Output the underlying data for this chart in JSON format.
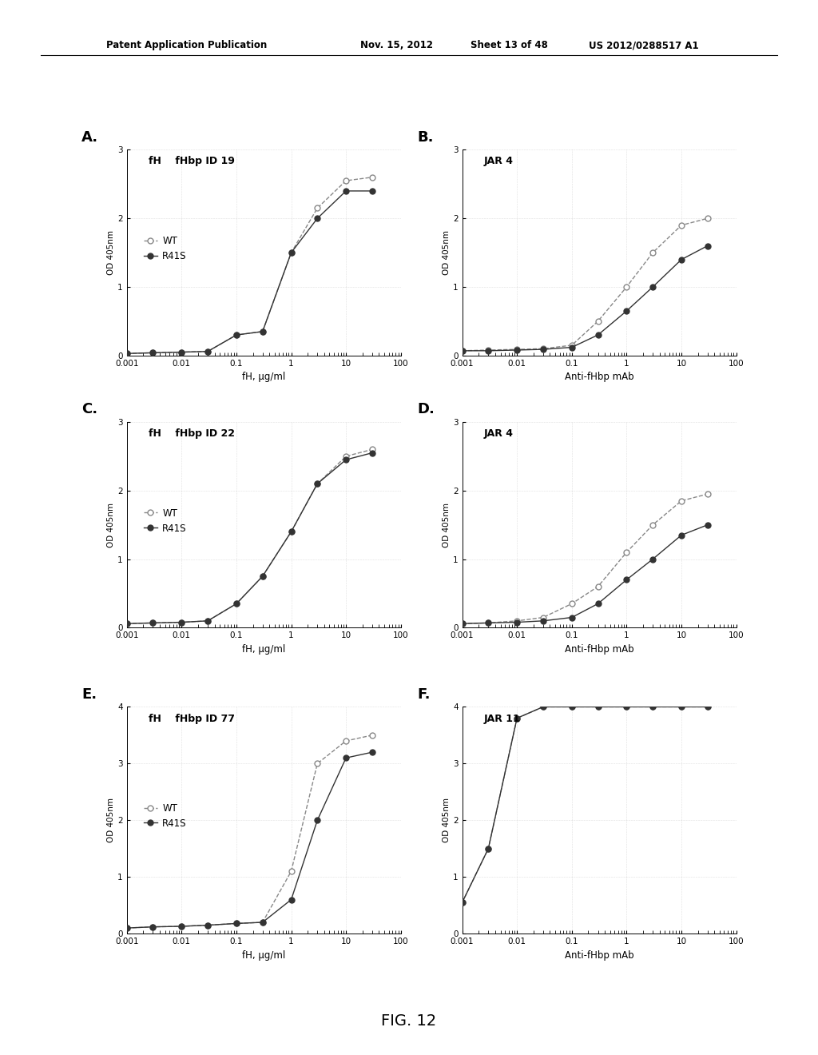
{
  "background_color": "#ffffff",
  "header_line1": "Patent Application Publication",
  "header_line2": "Nov. 15, 2012",
  "header_line3": "Sheet 13 of 48",
  "header_line4": "US 2012/0288517 A1",
  "fig_label": "FIG. 12",
  "panels": [
    {
      "label": "A.",
      "title": "fH    fHbp ID 19",
      "xlabel": "fH, µg/ml",
      "ylim": [
        0,
        3
      ],
      "yticks": [
        0,
        1,
        2,
        3
      ],
      "xlim": [
        0.001,
        100
      ],
      "xticks": [
        0.001,
        0.01,
        0.1,
        1,
        10,
        100
      ],
      "xticklabels": [
        "0.001",
        "0.01",
        "0.1",
        "1",
        "10",
        "100"
      ],
      "wt_x": [
        0.001,
        0.003,
        0.01,
        0.03,
        0.1,
        0.3,
        1,
        3,
        10,
        30
      ],
      "wt_y": [
        0.03,
        0.04,
        0.05,
        0.06,
        0.3,
        0.35,
        1.5,
        2.15,
        2.55,
        2.6
      ],
      "r41s_x": [
        0.001,
        0.003,
        0.01,
        0.03,
        0.1,
        0.3,
        1,
        3,
        10,
        30
      ],
      "r41s_y": [
        0.03,
        0.04,
        0.05,
        0.06,
        0.3,
        0.35,
        1.5,
        2.0,
        2.4,
        2.4
      ],
      "has_legend": true,
      "row": 0,
      "col": 0
    },
    {
      "label": "B.",
      "title": "JAR 4",
      "xlabel": "Anti-fHbp mAb",
      "ylim": [
        0,
        3
      ],
      "yticks": [
        0,
        1,
        2,
        3
      ],
      "xlim": [
        0.001,
        100
      ],
      "xticks": [
        0.001,
        0.01,
        0.1,
        1,
        10,
        100
      ],
      "xticklabels": [
        "0.001",
        "0.01",
        "0.1",
        "1",
        "10",
        "100"
      ],
      "wt_x": [
        0.001,
        0.003,
        0.01,
        0.03,
        0.1,
        0.3,
        1,
        3,
        10,
        30
      ],
      "wt_y": [
        0.07,
        0.08,
        0.09,
        0.1,
        0.15,
        0.5,
        1.0,
        1.5,
        1.9,
        2.0
      ],
      "r41s_x": [
        0.001,
        0.003,
        0.01,
        0.03,
        0.1,
        0.3,
        1,
        3,
        10,
        30
      ],
      "r41s_y": [
        0.07,
        0.07,
        0.08,
        0.09,
        0.12,
        0.3,
        0.65,
        1.0,
        1.4,
        1.6
      ],
      "has_legend": false,
      "row": 0,
      "col": 1
    },
    {
      "label": "C.",
      "title": "fH    fHbp ID 22",
      "xlabel": "fH, µg/ml",
      "ylim": [
        0,
        3
      ],
      "yticks": [
        0,
        1,
        2,
        3
      ],
      "xlim": [
        0.001,
        100
      ],
      "xticks": [
        0.001,
        0.01,
        0.1,
        1,
        10,
        100
      ],
      "xticklabels": [
        "0.001",
        "0.01",
        "0.1",
        "1",
        "10",
        "100"
      ],
      "wt_x": [
        0.001,
        0.003,
        0.01,
        0.03,
        0.1,
        0.3,
        1,
        3,
        10,
        30
      ],
      "wt_y": [
        0.06,
        0.07,
        0.08,
        0.1,
        0.35,
        0.75,
        1.4,
        2.1,
        2.5,
        2.6
      ],
      "r41s_x": [
        0.001,
        0.003,
        0.01,
        0.03,
        0.1,
        0.3,
        1,
        3,
        10,
        30
      ],
      "r41s_y": [
        0.06,
        0.07,
        0.08,
        0.1,
        0.35,
        0.75,
        1.4,
        2.1,
        2.45,
        2.55
      ],
      "has_legend": true,
      "row": 1,
      "col": 0
    },
    {
      "label": "D.",
      "title": "JAR 4",
      "xlabel": "Anti-fHbp mAb",
      "ylim": [
        0,
        3
      ],
      "yticks": [
        0,
        1,
        2,
        3
      ],
      "xlim": [
        0.001,
        100
      ],
      "xticks": [
        0.001,
        0.01,
        0.1,
        1,
        10,
        100
      ],
      "xticklabels": [
        "0.001",
        "0.01",
        "0.1",
        "1",
        "10",
        "100"
      ],
      "wt_x": [
        0.001,
        0.003,
        0.01,
        0.03,
        0.1,
        0.3,
        1,
        3,
        10,
        30
      ],
      "wt_y": [
        0.06,
        0.07,
        0.1,
        0.15,
        0.35,
        0.6,
        1.1,
        1.5,
        1.85,
        1.95
      ],
      "r41s_x": [
        0.001,
        0.003,
        0.01,
        0.03,
        0.1,
        0.3,
        1,
        3,
        10,
        30
      ],
      "r41s_y": [
        0.06,
        0.07,
        0.08,
        0.1,
        0.15,
        0.35,
        0.7,
        1.0,
        1.35,
        1.5
      ],
      "has_legend": false,
      "row": 1,
      "col": 1
    },
    {
      "label": "E.",
      "title": "fH    fHbp ID 77",
      "xlabel": "fH, µg/ml",
      "ylim": [
        0,
        4
      ],
      "yticks": [
        0,
        1,
        2,
        3,
        4
      ],
      "xlim": [
        0.001,
        100
      ],
      "xticks": [
        0.001,
        0.01,
        0.1,
        1,
        10,
        100
      ],
      "xticklabels": [
        "0.001",
        "0.01",
        "0.1",
        "1",
        "10",
        "100"
      ],
      "wt_x": [
        0.001,
        0.003,
        0.01,
        0.03,
        0.1,
        0.3,
        1,
        3,
        10,
        30
      ],
      "wt_y": [
        0.1,
        0.12,
        0.13,
        0.15,
        0.18,
        0.2,
        1.1,
        3.0,
        3.4,
        3.5
      ],
      "r41s_x": [
        0.001,
        0.003,
        0.01,
        0.03,
        0.1,
        0.3,
        1,
        3,
        10,
        30
      ],
      "r41s_y": [
        0.1,
        0.12,
        0.13,
        0.15,
        0.18,
        0.2,
        0.6,
        2.0,
        3.1,
        3.2
      ],
      "has_legend": true,
      "row": 2,
      "col": 0
    },
    {
      "label": "F.",
      "title": "JAR 11",
      "xlabel": "Anti-fHbp mAb",
      "ylim": [
        0,
        4
      ],
      "yticks": [
        0,
        1,
        2,
        3,
        4
      ],
      "xlim": [
        0.001,
        100
      ],
      "xticks": [
        0.001,
        0.01,
        0.1,
        1,
        10,
        100
      ],
      "xticklabels": [
        "0.001",
        "0.01",
        "0.1",
        "1",
        "10",
        "100"
      ],
      "wt_x": [
        0.001,
        0.003,
        0.01,
        0.03,
        0.1,
        0.3,
        1,
        3,
        10,
        30
      ],
      "wt_y": [
        0.55,
        1.5,
        3.8,
        4.0,
        4.0,
        4.0,
        4.0,
        4.0,
        4.0,
        4.0
      ],
      "r41s_x": [
        0.001,
        0.003,
        0.01,
        0.03,
        0.1,
        0.3,
        1,
        3,
        10,
        30
      ],
      "r41s_y": [
        0.55,
        1.5,
        3.8,
        4.0,
        4.0,
        4.0,
        4.0,
        4.0,
        4.0,
        4.0
      ],
      "has_legend": false,
      "row": 2,
      "col": 1
    }
  ],
  "wt_color": "#888888",
  "r41s_color": "#333333",
  "wt_marker": "o",
  "r41s_marker": "o",
  "wt_markerfacecolor": "white",
  "r41s_markerfacecolor": "#333333",
  "line_style_wt": "--",
  "line_style_r41s": "-",
  "markersize": 5,
  "linewidth": 1.0,
  "tick_fontsize": 7.5,
  "label_fontsize": 8.5,
  "title_fontsize": 9,
  "panel_label_fontsize": 13
}
